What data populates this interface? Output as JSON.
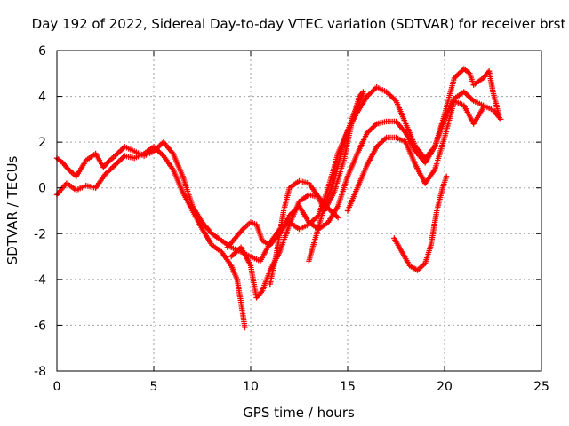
{
  "chart_data": {
    "type": "scatter",
    "title": "Day 192 of 2022, Sidereal Day-to-day VTEC variation (SDTVAR) for receiver brst",
    "xlabel": "GPS time / hours",
    "ylabel": "SDTVAR / TECUs",
    "xlim": [
      0,
      25
    ],
    "ylim": [
      -8,
      6
    ],
    "xticks": [
      0,
      5,
      10,
      15,
      20,
      25
    ],
    "yticks": [
      -8,
      -6,
      -4,
      -2,
      0,
      2,
      4,
      6
    ],
    "grid": true,
    "marker": "+",
    "color": "#ff0000",
    "tracks": [
      [
        [
          0.0,
          1.3
        ],
        [
          0.3,
          1.1
        ],
        [
          0.6,
          0.8
        ],
        [
          1.0,
          0.5
        ],
        [
          1.5,
          1.2
        ],
        [
          2.0,
          1.5
        ],
        [
          2.4,
          0.9
        ],
        [
          2.6,
          1.1
        ],
        [
          3.0,
          1.4
        ],
        [
          3.5,
          1.8
        ],
        [
          4.0,
          1.6
        ],
        [
          4.5,
          1.4
        ],
        [
          5.0,
          1.6
        ],
        [
          5.5,
          2.0
        ],
        [
          6.0,
          1.5
        ],
        [
          6.5,
          0.5
        ],
        [
          7.0,
          -0.8
        ],
        [
          7.5,
          -1.5
        ],
        [
          8.0,
          -2.0
        ],
        [
          8.5,
          -2.3
        ],
        [
          9.0,
          -2.6
        ],
        [
          9.5,
          -2.8
        ],
        [
          10.0,
          -3.0
        ],
        [
          10.5,
          -3.2
        ],
        [
          11.0,
          -2.4
        ],
        [
          11.5,
          -1.8
        ],
        [
          12.0,
          -1.5
        ],
        [
          12.5,
          -1.8
        ],
        [
          13.0,
          -1.6
        ],
        [
          13.5,
          -1.2
        ],
        [
          14.0,
          0.0
        ],
        [
          14.5,
          1.5
        ],
        [
          15.0,
          2.5
        ],
        [
          15.5,
          3.3
        ],
        [
          16.0,
          4.0
        ],
        [
          16.5,
          4.4
        ],
        [
          17.0,
          4.2
        ],
        [
          17.5,
          3.8
        ],
        [
          18.0,
          2.8
        ],
        [
          18.5,
          1.8
        ],
        [
          19.0,
          1.3
        ],
        [
          19.5,
          1.8
        ],
        [
          20.0,
          3.2
        ],
        [
          20.5,
          4.8
        ],
        [
          21.0,
          5.2
        ],
        [
          21.3,
          5.0
        ],
        [
          21.5,
          4.5
        ],
        [
          22.0,
          4.8
        ],
        [
          22.3,
          5.1
        ],
        [
          22.5,
          4.2
        ],
        [
          22.8,
          3.2
        ]
      ],
      [
        [
          0.0,
          -0.3
        ],
        [
          0.5,
          0.2
        ],
        [
          1.0,
          -0.1
        ],
        [
          1.5,
          0.1
        ],
        [
          2.0,
          0.0
        ],
        [
          2.5,
          0.6
        ],
        [
          3.0,
          1.0
        ],
        [
          3.5,
          1.4
        ],
        [
          4.0,
          1.3
        ],
        [
          4.5,
          1.5
        ],
        [
          5.0,
          1.8
        ],
        [
          5.5,
          1.4
        ],
        [
          6.0,
          0.8
        ],
        [
          6.5,
          -0.2
        ],
        [
          7.0,
          -1.0
        ],
        [
          7.5,
          -1.8
        ],
        [
          8.0,
          -2.5
        ],
        [
          8.5,
          -2.8
        ],
        [
          9.0,
          -3.4
        ],
        [
          9.3,
          -4.0
        ],
        [
          9.5,
          -5.0
        ],
        [
          9.7,
          -6.1
        ]
      ],
      [
        [
          8.8,
          -2.6
        ],
        [
          9.2,
          -2.2
        ],
        [
          9.6,
          -1.8
        ],
        [
          10.0,
          -1.5
        ],
        [
          10.3,
          -1.6
        ],
        [
          10.6,
          -2.3
        ],
        [
          11.0,
          -2.5
        ],
        [
          11.5,
          -2.0
        ],
        [
          12.0,
          -1.2
        ],
        [
          12.5,
          -0.8
        ],
        [
          13.0,
          -1.5
        ],
        [
          13.5,
          -1.8
        ],
        [
          14.0,
          -1.5
        ],
        [
          14.5,
          -0.8
        ],
        [
          15.0,
          0.5
        ],
        [
          15.5,
          1.5
        ],
        [
          16.0,
          2.4
        ],
        [
          16.5,
          2.8
        ],
        [
          17.0,
          2.9
        ],
        [
          17.5,
          2.9
        ],
        [
          18.0,
          2.4
        ],
        [
          18.5,
          1.6
        ],
        [
          19.0,
          1.1
        ],
        [
          19.5,
          1.8
        ],
        [
          20.0,
          3.0
        ],
        [
          20.5,
          3.9
        ],
        [
          21.0,
          4.2
        ],
        [
          21.5,
          3.8
        ],
        [
          22.0,
          3.6
        ],
        [
          22.5,
          3.4
        ],
        [
          22.9,
          3.0
        ]
      ],
      [
        [
          15.0,
          -1.0
        ],
        [
          15.5,
          0.0
        ],
        [
          16.0,
          1.0
        ],
        [
          16.5,
          1.8
        ],
        [
          17.0,
          2.2
        ],
        [
          17.5,
          2.2
        ],
        [
          18.0,
          2.0
        ],
        [
          18.5,
          1.0
        ],
        [
          19.0,
          0.2
        ],
        [
          19.5,
          0.8
        ],
        [
          20.0,
          2.2
        ],
        [
          20.5,
          3.8
        ],
        [
          21.0,
          3.6
        ],
        [
          21.5,
          2.8
        ],
        [
          22.0,
          3.5
        ]
      ],
      [
        [
          9.0,
          -3.0
        ],
        [
          9.5,
          -2.6
        ],
        [
          10.0,
          -3.4
        ],
        [
          10.3,
          -4.8
        ],
        [
          10.6,
          -4.5
        ],
        [
          11.0,
          -3.6
        ],
        [
          11.5,
          -2.8
        ],
        [
          12.0,
          -1.6
        ],
        [
          12.5,
          -0.6
        ],
        [
          13.0,
          -0.3
        ],
        [
          13.5,
          -0.4
        ],
        [
          14.0,
          -0.9
        ],
        [
          14.5,
          -1.3
        ]
      ],
      [
        [
          11.0,
          -4.2
        ],
        [
          11.3,
          -3.0
        ],
        [
          11.7,
          -1.0
        ],
        [
          12.0,
          0.0
        ],
        [
          12.5,
          0.3
        ],
        [
          13.0,
          0.2
        ],
        [
          13.5,
          -0.4
        ],
        [
          13.8,
          -1.0
        ],
        [
          14.3,
          -0.2
        ],
        [
          14.8,
          1.2
        ],
        [
          15.2,
          2.8
        ],
        [
          15.6,
          4.0
        ],
        [
          15.8,
          4.2
        ]
      ],
      [
        [
          13.0,
          -3.2
        ],
        [
          13.4,
          -2.0
        ],
        [
          13.8,
          -0.8
        ],
        [
          14.3,
          0.3
        ],
        [
          14.8,
          2.0
        ],
        [
          15.3,
          3.2
        ],
        [
          15.8,
          4.1
        ]
      ],
      [
        [
          17.4,
          -2.2
        ],
        [
          17.8,
          -2.8
        ],
        [
          18.2,
          -3.4
        ],
        [
          18.6,
          -3.6
        ],
        [
          19.0,
          -3.3
        ],
        [
          19.3,
          -2.5
        ],
        [
          19.6,
          -1.0
        ],
        [
          19.9,
          0.0
        ],
        [
          20.1,
          0.5
        ]
      ]
    ]
  }
}
